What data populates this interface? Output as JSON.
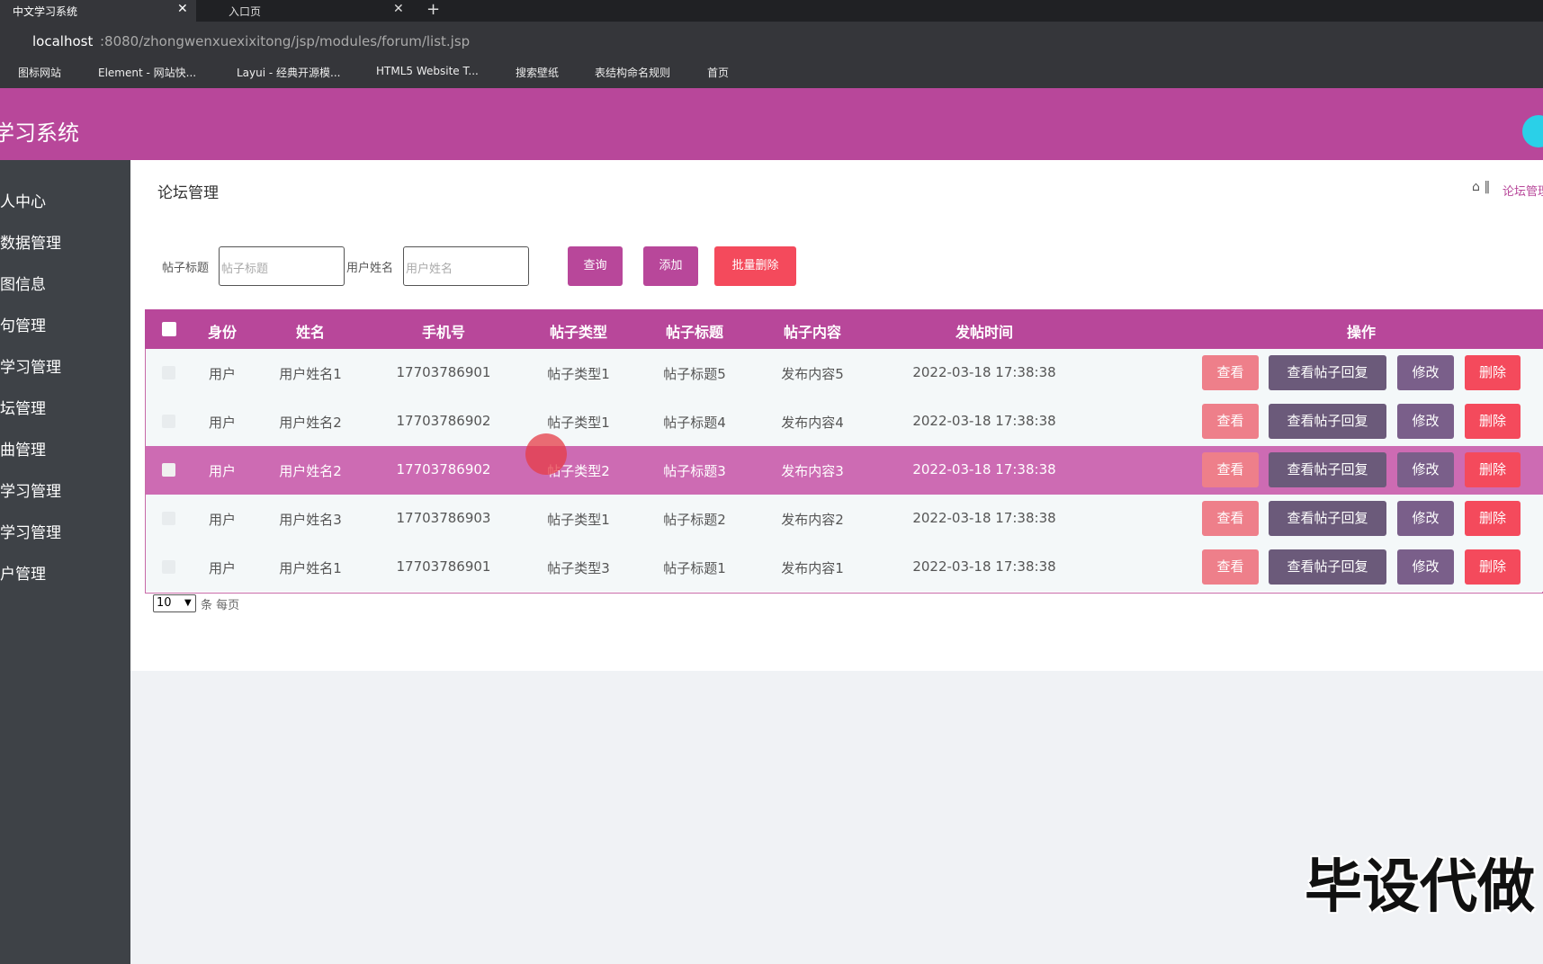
{
  "browser": {
    "tabs": [
      "中文学习系统",
      "入口页"
    ],
    "url_host": "localhost",
    "url_path": ":8080/zhongwenxuexixitong/jsp/modules/forum/list.jsp",
    "bookmarks": [
      "图标网站",
      "Element - 网站快...",
      "Layui - 经典开源模...",
      "HTML5 Website T...",
      "搜索壁纸",
      "表结构命名规则",
      "首页"
    ]
  },
  "header": {
    "title": "学习系统"
  },
  "sidebar": {
    "items": [
      "人中心",
      "数据管理",
      "图信息",
      "句管理",
      "学习管理",
      "坛管理",
      "曲管理",
      "学习管理",
      "学习管理",
      "户管理"
    ]
  },
  "page": {
    "title": "论坛管理",
    "breadcrumb": "论坛管理"
  },
  "search": {
    "fields": [
      {
        "label": "帖子标题",
        "placeholder": "帖子标题"
      },
      {
        "label": "用户姓名",
        "placeholder": "用户姓名"
      }
    ],
    "buttons": [
      "查询",
      "添加",
      "批量删除"
    ]
  },
  "table": {
    "headers": [
      "身份",
      "姓名",
      "手机号",
      "帖子类型",
      "帖子标题",
      "帖子内容",
      "发帖时间",
      "操作"
    ],
    "rows": [
      [
        "用户",
        "用户姓名1",
        "17703786901",
        "帖子类型1",
        "帖子标题5",
        "发布内容5",
        "2022-03-18 17:38:38"
      ],
      [
        "用户",
        "用户姓名2",
        "17703786902",
        "帖子类型1",
        "帖子标题4",
        "发布内容4",
        "2022-03-18 17:38:38"
      ],
      [
        "用户",
        "用户姓名2",
        "17703786902",
        "帖子类型2",
        "帖子标题3",
        "发布内容3",
        "2022-03-18 17:38:38"
      ],
      [
        "用户",
        "用户姓名3",
        "17703786903",
        "帖子类型1",
        "帖子标题2",
        "发布内容2",
        "2022-03-18 17:38:38"
      ],
      [
        "用户",
        "用户姓名1",
        "17703786901",
        "帖子类型3",
        "帖子标题1",
        "发布内容1",
        "2022-03-18 17:38:38"
      ]
    ],
    "actions": [
      "查看",
      "查看帖子回复",
      "修改",
      "删除"
    ]
  },
  "pagination": {
    "page_size": "10",
    "suffix": "条 每页"
  },
  "watermark": "毕设代做"
}
